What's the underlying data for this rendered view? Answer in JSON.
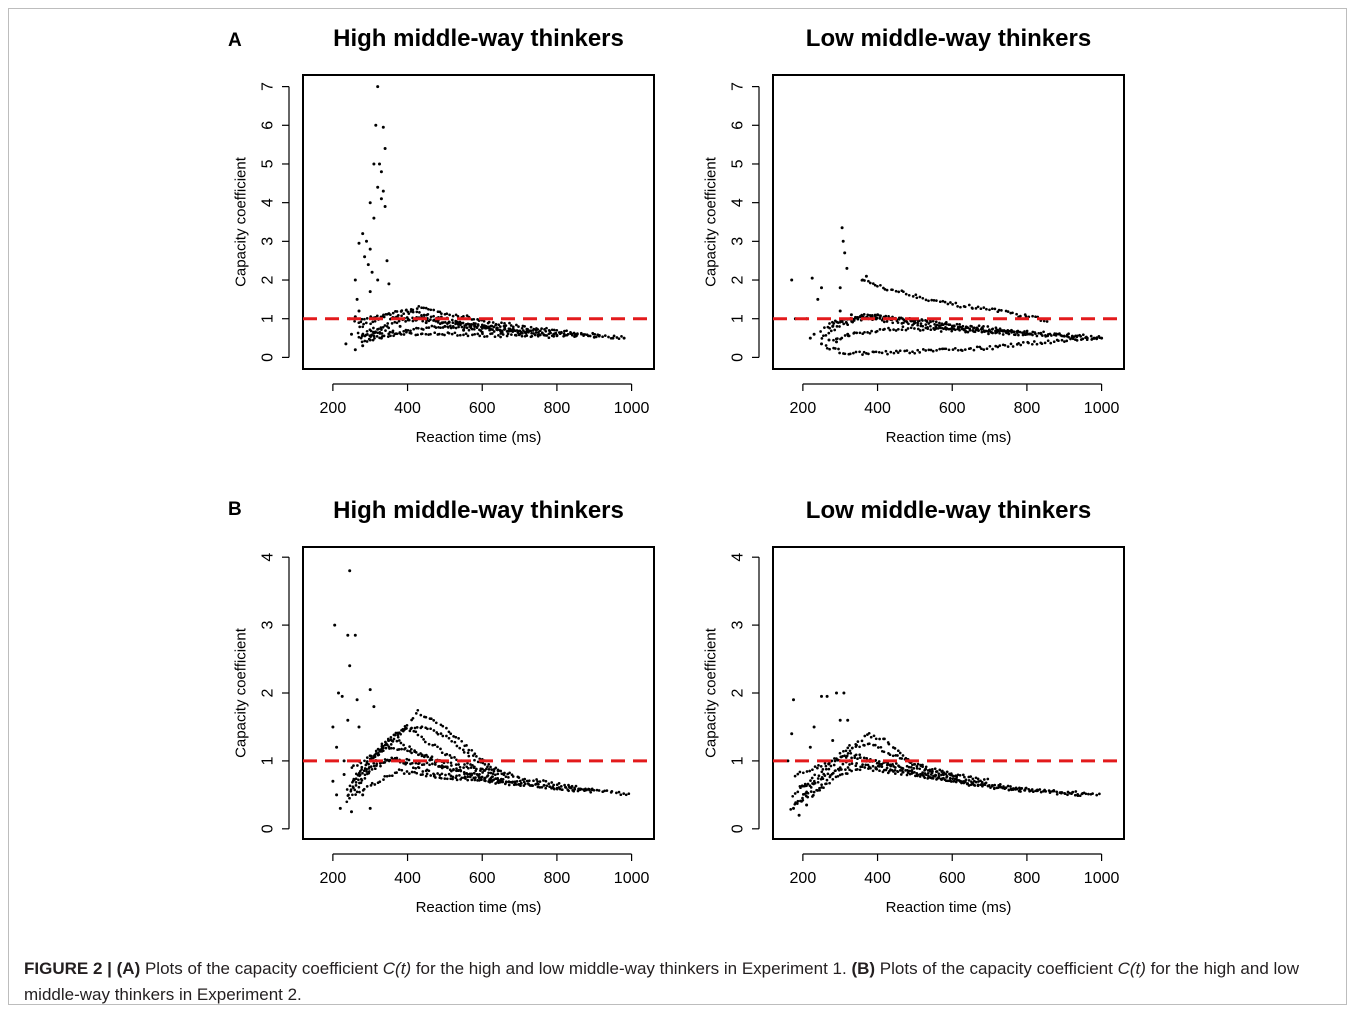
{
  "panels": [
    {
      "letter": "A"
    },
    {
      "letter": "B"
    }
  ],
  "caption": {
    "figure": "FIGURE 2 |",
    "a_tag": "(A)",
    "a_pre": " Plots of the capacity coefficient ",
    "a_ct": "C(t)",
    "a_post": " for the high and low middle-way thinkers in Experiment 1. ",
    "b_tag": "(B)",
    "b_pre": " Plots of the capacity coefficient ",
    "b_ct": "C(t)",
    "b_post": " for the high and low middle-way thinkers in Experiment 2."
  },
  "colors": {
    "points": "#000000",
    "reference_line": "#e31a1c"
  },
  "chart_data": [
    {
      "type": "scatter",
      "panel": "A",
      "title": "High middle-way thinkers",
      "xlabel": "Reaction time (ms)",
      "ylabel": "Capacity coefficient",
      "xlim": [
        120,
        1060
      ],
      "ylim": [
        -0.3,
        7.3
      ],
      "xticks": [
        200,
        400,
        600,
        800,
        1000
      ],
      "yticks": [
        0,
        1,
        2,
        3,
        4,
        5,
        6,
        7
      ],
      "reference_line": {
        "y": 1,
        "style": "dashed"
      },
      "points": [
        [
          320,
          7.0
        ],
        [
          315,
          6.0
        ],
        [
          335,
          5.95
        ],
        [
          310,
          5.0
        ],
        [
          325,
          5.0
        ],
        [
          330,
          4.8
        ],
        [
          340,
          5.4
        ],
        [
          335,
          4.3
        ],
        [
          320,
          4.4
        ],
        [
          300,
          4.0
        ],
        [
          330,
          4.1
        ],
        [
          340,
          3.9
        ],
        [
          310,
          3.6
        ],
        [
          280,
          3.2
        ],
        [
          270,
          2.95
        ],
        [
          290,
          3.0
        ],
        [
          300,
          2.8
        ],
        [
          285,
          2.6
        ],
        [
          260,
          2.0
        ],
        [
          295,
          2.4
        ],
        [
          305,
          2.2
        ],
        [
          320,
          2.0
        ],
        [
          345,
          2.5
        ],
        [
          350,
          1.9
        ],
        [
          300,
          1.7
        ],
        [
          265,
          1.5
        ],
        [
          270,
          1.2
        ],
        [
          260,
          1.05
        ],
        [
          245,
          1.0
        ],
        [
          250,
          0.6
        ],
        [
          235,
          0.35
        ],
        [
          260,
          0.2
        ],
        [
          280,
          0.3
        ],
        [
          300,
          0.45
        ],
        [
          310,
          0.55
        ],
        [
          330,
          0.5
        ],
        [
          360,
          0.65
        ],
        [
          380,
          0.8
        ],
        [
          420,
          1.0
        ],
        [
          450,
          0.9
        ],
        [
          500,
          0.8
        ],
        [
          550,
          0.7
        ],
        [
          600,
          0.65
        ],
        [
          650,
          0.62
        ],
        [
          700,
          0.6
        ],
        [
          750,
          0.58
        ],
        [
          800,
          0.56
        ],
        [
          850,
          0.55
        ],
        [
          900,
          0.52
        ],
        [
          950,
          0.5
        ],
        [
          980,
          0.5
        ]
      ],
      "series_trends": [
        {
          "x": [
            270,
            330,
            380,
            430,
            500,
            600,
            700,
            800,
            900,
            980
          ],
          "y": [
            0.6,
            0.8,
            1.15,
            1.3,
            1.15,
            0.95,
            0.8,
            0.68,
            0.58,
            0.5
          ]
        },
        {
          "x": [
            270,
            330,
            380,
            440,
            520,
            620,
            720,
            820,
            920
          ],
          "y": [
            0.5,
            0.7,
            0.95,
            1.0,
            0.9,
            0.8,
            0.7,
            0.62,
            0.55
          ]
        },
        {
          "x": [
            280,
            340,
            400,
            470,
            560,
            660,
            760,
            860
          ],
          "y": [
            0.4,
            0.55,
            0.7,
            0.8,
            0.75,
            0.68,
            0.6,
            0.55
          ]
        },
        {
          "x": [
            270,
            320,
            380,
            450,
            540,
            640,
            740
          ],
          "y": [
            0.75,
            1.0,
            1.2,
            1.1,
            0.9,
            0.75,
            0.65
          ]
        },
        {
          "x": [
            260,
            320,
            390,
            460,
            550,
            650
          ],
          "y": [
            0.9,
            1.1,
            1.05,
            0.95,
            0.8,
            0.7
          ]
        },
        {
          "x": [
            280,
            340,
            420,
            500,
            600,
            700,
            800
          ],
          "y": [
            0.55,
            0.65,
            0.62,
            0.6,
            0.58,
            0.56,
            0.54
          ]
        }
      ]
    },
    {
      "type": "scatter",
      "panel": "A",
      "title": "Low middle-way thinkers",
      "xlabel": "Reaction time (ms)",
      "ylabel": "Capacity coefficient",
      "xlim": [
        120,
        1060
      ],
      "ylim": [
        -0.3,
        7.3
      ],
      "xticks": [
        200,
        400,
        600,
        800,
        1000
      ],
      "yticks": [
        0,
        1,
        2,
        3,
        4,
        5,
        6,
        7
      ],
      "reference_line": {
        "y": 1,
        "style": "dashed"
      },
      "points": [
        [
          305,
          3.35
        ],
        [
          308,
          3.0
        ],
        [
          312,
          2.7
        ],
        [
          318,
          2.3
        ],
        [
          300,
          1.8
        ],
        [
          170,
          2.0
        ],
        [
          225,
          2.05
        ],
        [
          240,
          1.5
        ],
        [
          180,
          1.0
        ],
        [
          210,
          1.0
        ],
        [
          230,
          0.6
        ],
        [
          250,
          0.35
        ],
        [
          270,
          0.45
        ],
        [
          280,
          0.8
        ],
        [
          300,
          1.2
        ],
        [
          330,
          1.1
        ],
        [
          360,
          2.0
        ],
        [
          370,
          2.1
        ],
        [
          250,
          1.8
        ],
        [
          220,
          0.5
        ],
        [
          290,
          0.4
        ],
        [
          320,
          0.6
        ],
        [
          400,
          1.1
        ],
        [
          500,
          0.9
        ],
        [
          600,
          0.75
        ],
        [
          700,
          0.68
        ],
        [
          800,
          0.6
        ],
        [
          900,
          0.55
        ],
        [
          1000,
          0.5
        ],
        [
          980,
          0.5
        ]
      ],
      "series_trends": [
        {
          "x": [
            360,
            420,
            500,
            580,
            650,
            720,
            800,
            860
          ],
          "y": [
            2.0,
            1.8,
            1.6,
            1.4,
            1.3,
            1.2,
            1.05,
            0.95
          ]
        },
        {
          "x": [
            260,
            300,
            350,
            420,
            500,
            600,
            700,
            800,
            900,
            1000
          ],
          "y": [
            0.3,
            0.15,
            0.1,
            0.12,
            0.15,
            0.2,
            0.25,
            0.35,
            0.45,
            0.5
          ]
        },
        {
          "x": [
            250,
            300,
            350,
            400,
            450,
            520,
            600,
            700,
            800,
            900,
            1000
          ],
          "y": [
            0.5,
            0.8,
            1.0,
            1.05,
            1.0,
            0.95,
            0.85,
            0.75,
            0.65,
            0.58,
            0.5
          ]
        },
        {
          "x": [
            250,
            300,
            360,
            420,
            500,
            580,
            660,
            740,
            820
          ],
          "y": [
            0.7,
            0.9,
            1.05,
            0.95,
            0.85,
            0.75,
            0.7,
            0.65,
            0.6
          ]
        },
        {
          "x": [
            270,
            320,
            380,
            450,
            530,
            620,
            700,
            780
          ],
          "y": [
            0.9,
            1.0,
            1.1,
            1.0,
            0.9,
            0.8,
            0.7,
            0.62
          ]
        },
        {
          "x": [
            280,
            340,
            400,
            470,
            550,
            650,
            750,
            850,
            950
          ],
          "y": [
            0.45,
            0.6,
            0.7,
            0.75,
            0.72,
            0.68,
            0.62,
            0.58,
            0.55
          ]
        }
      ]
    },
    {
      "type": "scatter",
      "panel": "B",
      "title": "High middle-way thinkers",
      "xlabel": "Reaction time (ms)",
      "ylabel": "Capacity coefficient",
      "xlim": [
        120,
        1060
      ],
      "ylim": [
        -0.15,
        4.15
      ],
      "xticks": [
        200,
        400,
        600,
        800,
        1000
      ],
      "yticks": [
        0,
        1,
        2,
        3,
        4
      ],
      "reference_line": {
        "y": 1,
        "style": "dashed"
      },
      "points": [
        [
          245,
          3.8
        ],
        [
          205,
          3.0
        ],
        [
          240,
          2.85
        ],
        [
          260,
          2.85
        ],
        [
          245,
          2.4
        ],
        [
          215,
          2.0
        ],
        [
          225,
          1.95
        ],
        [
          240,
          1.6
        ],
        [
          265,
          1.9
        ],
        [
          300,
          2.05
        ],
        [
          310,
          1.8
        ],
        [
          200,
          1.5
        ],
        [
          210,
          1.2
        ],
        [
          230,
          0.8
        ],
        [
          220,
          0.3
        ],
        [
          250,
          0.25
        ],
        [
          280,
          0.5
        ],
        [
          300,
          0.3
        ],
        [
          210,
          0.5
        ],
        [
          200,
          0.7
        ],
        [
          270,
          1.5
        ],
        [
          230,
          1.0
        ]
      ],
      "series_trends": [
        {
          "x": [
            240,
            280,
            330,
            380,
            430,
            480,
            530,
            580,
            630,
            680
          ],
          "y": [
            0.5,
            0.9,
            1.2,
            1.4,
            1.72,
            1.55,
            1.35,
            1.1,
            0.9,
            0.8
          ]
        },
        {
          "x": [
            240,
            290,
            340,
            390,
            440,
            490,
            540,
            600,
            660
          ],
          "y": [
            0.6,
            0.9,
            1.3,
            1.45,
            1.5,
            1.4,
            1.2,
            0.95,
            0.8
          ]
        },
        {
          "x": [
            240,
            300,
            350,
            400,
            450,
            500,
            560,
            620
          ],
          "y": [
            0.4,
            0.9,
            1.3,
            1.5,
            1.3,
            1.1,
            0.95,
            0.85
          ]
        },
        {
          "x": [
            250,
            300,
            350,
            400,
            460,
            520,
            600,
            700,
            800,
            900,
            1000
          ],
          "y": [
            0.7,
            1.0,
            1.2,
            1.15,
            1.05,
            0.95,
            0.85,
            0.75,
            0.65,
            0.58,
            0.5
          ]
        },
        {
          "x": [
            240,
            290,
            340,
            400,
            460,
            530,
            600,
            700,
            800,
            900
          ],
          "y": [
            0.5,
            0.8,
            1.0,
            1.0,
            0.95,
            0.85,
            0.78,
            0.68,
            0.6,
            0.55
          ]
        },
        {
          "x": [
            260,
            310,
            360,
            420,
            480,
            560,
            640,
            720
          ],
          "y": [
            0.7,
            0.95,
            1.05,
            0.9,
            0.8,
            0.75,
            0.7,
            0.65
          ]
        },
        {
          "x": [
            260,
            320,
            380,
            440,
            520,
            600,
            700,
            800,
            900
          ],
          "y": [
            0.5,
            0.7,
            0.85,
            0.8,
            0.75,
            0.7,
            0.65,
            0.6,
            0.56
          ]
        },
        {
          "x": [
            250,
            310,
            370,
            430,
            500,
            580,
            660
          ],
          "y": [
            0.9,
            1.1,
            1.3,
            1.1,
            0.9,
            0.8,
            0.7
          ]
        }
      ]
    },
    {
      "type": "scatter",
      "panel": "B",
      "title": "Low middle-way thinkers",
      "xlabel": "Reaction time (ms)",
      "ylabel": "Capacity coefficient",
      "xlim": [
        120,
        1060
      ],
      "ylim": [
        -0.15,
        4.15
      ],
      "xticks": [
        200,
        400,
        600,
        800,
        1000
      ],
      "yticks": [
        0,
        1,
        2,
        3,
        4
      ],
      "reference_line": {
        "y": 1,
        "style": "dashed"
      },
      "points": [
        [
          175,
          1.9
        ],
        [
          250,
          1.95
        ],
        [
          265,
          1.95
        ],
        [
          290,
          2.0
        ],
        [
          310,
          2.0
        ],
        [
          230,
          1.5
        ],
        [
          220,
          1.2
        ],
        [
          170,
          1.4
        ],
        [
          160,
          1.0
        ],
        [
          175,
          0.3
        ],
        [
          190,
          0.2
        ],
        [
          210,
          0.35
        ],
        [
          300,
          1.6
        ],
        [
          320,
          1.6
        ],
        [
          280,
          1.3
        ]
      ],
      "series_trends": [
        {
          "x": [
            170,
            220,
            270,
            320,
            370,
            420,
            480,
            550,
            620,
            700
          ],
          "y": [
            0.3,
            0.6,
            0.9,
            1.1,
            1.4,
            1.3,
            1.0,
            0.85,
            0.78,
            0.7
          ]
        },
        {
          "x": [
            170,
            220,
            270,
            320,
            380,
            440,
            500,
            560,
            620
          ],
          "y": [
            0.5,
            0.7,
            0.95,
            1.2,
            1.25,
            1.1,
            0.95,
            0.85,
            0.78
          ]
        },
        {
          "x": [
            180,
            230,
            280,
            330,
            380,
            440,
            520,
            600,
            700,
            800,
            900,
            1000
          ],
          "y": [
            0.4,
            0.5,
            0.8,
            1.05,
            1.0,
            0.95,
            0.85,
            0.75,
            0.65,
            0.58,
            0.52,
            0.5
          ]
        },
        {
          "x": [
            190,
            240,
            290,
            340,
            400,
            460,
            540,
            620,
            700,
            800
          ],
          "y": [
            0.6,
            0.7,
            0.85,
            0.95,
            0.9,
            0.85,
            0.78,
            0.7,
            0.62,
            0.56
          ]
        },
        {
          "x": [
            200,
            250,
            300,
            360,
            420,
            500,
            580,
            660,
            760,
            860,
            960
          ],
          "y": [
            0.5,
            0.6,
            0.8,
            0.9,
            0.85,
            0.8,
            0.72,
            0.65,
            0.58,
            0.55,
            0.52
          ]
        },
        {
          "x": [
            180,
            230,
            280,
            330,
            390,
            450,
            520,
            600
          ],
          "y": [
            0.8,
            0.9,
            1.0,
            1.1,
            1.0,
            0.9,
            0.8,
            0.72
          ]
        }
      ]
    }
  ]
}
